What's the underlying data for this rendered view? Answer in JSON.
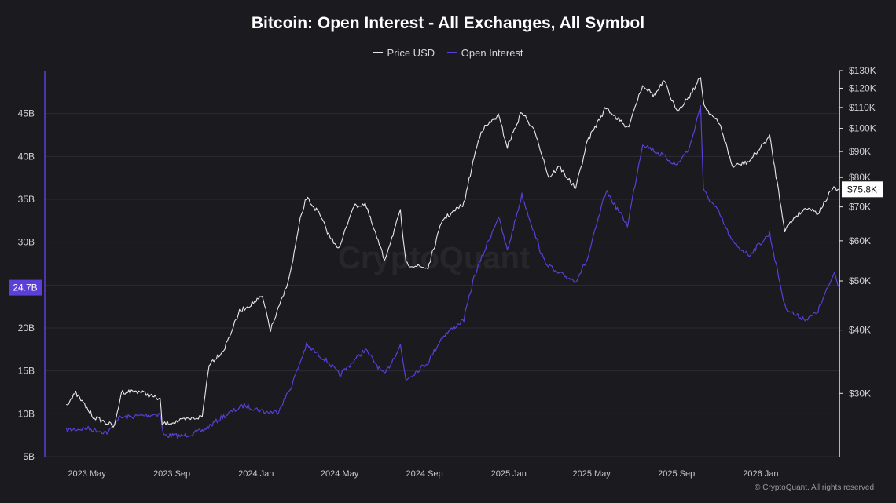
{
  "chart_data": {
    "type": "line",
    "title": "Bitcoin: Open Interest - All Exchanges, All Symbol",
    "legend_position": "top-center",
    "grid": true,
    "x_tick_labels": [
      "2023 May",
      "2023 Sep",
      "2024 Jan",
      "2024 May",
      "2024 Sep",
      "2025 Jan",
      "2025 May",
      "2025 Sep",
      "2026 Jan"
    ],
    "x_range": [
      "2023-03-01",
      "2026-04-25"
    ],
    "left_axis": {
      "ticks": [
        "5B",
        "10B",
        "15B",
        "20B",
        "25B",
        "30B",
        "35B",
        "40B",
        "45B"
      ],
      "tick_values": [
        5,
        10,
        15,
        20,
        25,
        30,
        35,
        40,
        45
      ],
      "ylim": [
        5,
        50
      ],
      "unit": "billion USD",
      "current_label": "24.7B",
      "current_value": 24.7,
      "color": "#5b3fd8"
    },
    "right_axis": {
      "scale": "log",
      "ticks": [
        "$30K",
        "$40K",
        "$50K",
        "$60K",
        "$70K",
        "$80K",
        "$90K",
        "$100K",
        "$110K",
        "$120K",
        "$130K"
      ],
      "tick_values": [
        30000,
        40000,
        50000,
        60000,
        70000,
        80000,
        90000,
        100000,
        110000,
        120000,
        130000
      ],
      "ylim": [
        22500,
        130000
      ],
      "current_label": "$75.8K",
      "current_value": 75800,
      "color": "#e8e8e8"
    },
    "series": [
      {
        "name": "Price USD",
        "axis": "right",
        "color": "#e8e8e8",
        "points": [
          [
            "2023-04-01",
            28500
          ],
          [
            "2023-04-15",
            30000
          ],
          [
            "2023-05-10",
            27000
          ],
          [
            "2023-06-10",
            25800
          ],
          [
            "2023-06-20",
            30200
          ],
          [
            "2023-07-15",
            30300
          ],
          [
            "2023-08-15",
            29200
          ],
          [
            "2023-08-18",
            26100
          ],
          [
            "2023-09-15",
            26500
          ],
          [
            "2023-10-15",
            27000
          ],
          [
            "2023-10-25",
            34300
          ],
          [
            "2023-11-15",
            36500
          ],
          [
            "2023-12-08",
            43500
          ],
          [
            "2024-01-10",
            46500
          ],
          [
            "2024-01-22",
            40000
          ],
          [
            "2024-02-10",
            47000
          ],
          [
            "2024-02-20",
            52000
          ],
          [
            "2024-03-05",
            66000
          ],
          [
            "2024-03-14",
            73000
          ],
          [
            "2024-04-01",
            68000
          ],
          [
            "2024-04-17",
            61000
          ],
          [
            "2024-05-01",
            58000
          ],
          [
            "2024-05-20",
            70000
          ],
          [
            "2024-06-07",
            71000
          ],
          [
            "2024-07-05",
            55000
          ],
          [
            "2024-07-28",
            68500
          ],
          [
            "2024-08-05",
            54000
          ],
          [
            "2024-09-06",
            53000
          ],
          [
            "2024-09-27",
            66000
          ],
          [
            "2024-10-28",
            71000
          ],
          [
            "2024-11-12",
            88000
          ],
          [
            "2024-11-22",
            99000
          ],
          [
            "2024-12-17",
            106000
          ],
          [
            "2024-12-30",
            92000
          ],
          [
            "2025-01-20",
            108000
          ],
          [
            "2025-02-10",
            97000
          ],
          [
            "2025-02-28",
            80000
          ],
          [
            "2025-03-15",
            84000
          ],
          [
            "2025-04-08",
            76000
          ],
          [
            "2025-04-25",
            94500
          ],
          [
            "2025-05-22",
            110000
          ],
          [
            "2025-06-22",
            100000
          ],
          [
            "2025-07-14",
            122000
          ],
          [
            "2025-07-31",
            116000
          ],
          [
            "2025-08-14",
            124000
          ],
          [
            "2025-09-01",
            108000
          ],
          [
            "2025-09-20",
            116000
          ],
          [
            "2025-10-06",
            126000
          ],
          [
            "2025-10-11",
            111000
          ],
          [
            "2025-11-04",
            101000
          ],
          [
            "2025-11-21",
            84000
          ],
          [
            "2025-12-15",
            86000
          ],
          [
            "2026-01-14",
            96500
          ],
          [
            "2026-02-05",
            63000
          ],
          [
            "2026-02-20",
            67000
          ],
          [
            "2026-03-10",
            70000
          ],
          [
            "2026-03-25",
            68000
          ],
          [
            "2026-04-15",
            76000
          ],
          [
            "2026-04-25",
            75800
          ]
        ]
      },
      {
        "name": "Open Interest",
        "axis": "left",
        "color": "#5b3fd8",
        "points": [
          [
            "2023-04-01",
            8.1
          ],
          [
            "2023-05-01",
            8.3
          ],
          [
            "2023-06-01",
            7.8
          ],
          [
            "2023-06-15",
            9.5
          ],
          [
            "2023-08-15",
            10.0
          ],
          [
            "2023-08-20",
            7.5
          ],
          [
            "2023-09-15",
            7.4
          ],
          [
            "2023-10-15",
            8.0
          ],
          [
            "2023-11-15",
            9.7
          ],
          [
            "2023-12-15",
            11.0
          ],
          [
            "2024-01-15",
            10.2
          ],
          [
            "2024-02-01",
            10.2
          ],
          [
            "2024-02-20",
            13.0
          ],
          [
            "2024-03-14",
            18.0
          ],
          [
            "2024-04-15",
            16.0
          ],
          [
            "2024-05-01",
            14.5
          ],
          [
            "2024-06-07",
            17.5
          ],
          [
            "2024-07-05",
            14.5
          ],
          [
            "2024-07-28",
            18.0
          ],
          [
            "2024-08-05",
            14.0
          ],
          [
            "2024-09-06",
            16.0
          ],
          [
            "2024-09-27",
            19.0
          ],
          [
            "2024-10-28",
            21.0
          ],
          [
            "2024-11-12",
            26.0
          ],
          [
            "2024-12-17",
            33.0
          ],
          [
            "2024-12-30",
            29.0
          ],
          [
            "2025-01-20",
            35.5
          ],
          [
            "2025-02-20",
            28.0
          ],
          [
            "2025-03-10",
            26.5
          ],
          [
            "2025-04-08",
            25.5
          ],
          [
            "2025-04-25",
            28.0
          ],
          [
            "2025-05-22",
            36.0
          ],
          [
            "2025-06-22",
            32.0
          ],
          [
            "2025-07-14",
            41.5
          ],
          [
            "2025-08-14",
            40.0
          ],
          [
            "2025-09-01",
            39.0
          ],
          [
            "2025-09-20",
            41.0
          ],
          [
            "2025-10-06",
            46.0
          ],
          [
            "2025-10-10",
            36.0
          ],
          [
            "2025-11-01",
            33.5
          ],
          [
            "2025-11-21",
            30.0
          ],
          [
            "2025-12-15",
            28.5
          ],
          [
            "2026-01-14",
            31.0
          ],
          [
            "2026-02-05",
            22.5
          ],
          [
            "2026-02-20",
            21.5
          ],
          [
            "2026-03-10",
            21.0
          ],
          [
            "2026-03-25",
            22.0
          ],
          [
            "2026-04-10",
            25.0
          ],
          [
            "2026-04-18",
            26.5
          ],
          [
            "2026-04-25",
            24.7
          ]
        ]
      }
    ]
  },
  "credit_text": "© CryptoQuant. All rights reserved",
  "watermark_text": "CryptoQuant"
}
